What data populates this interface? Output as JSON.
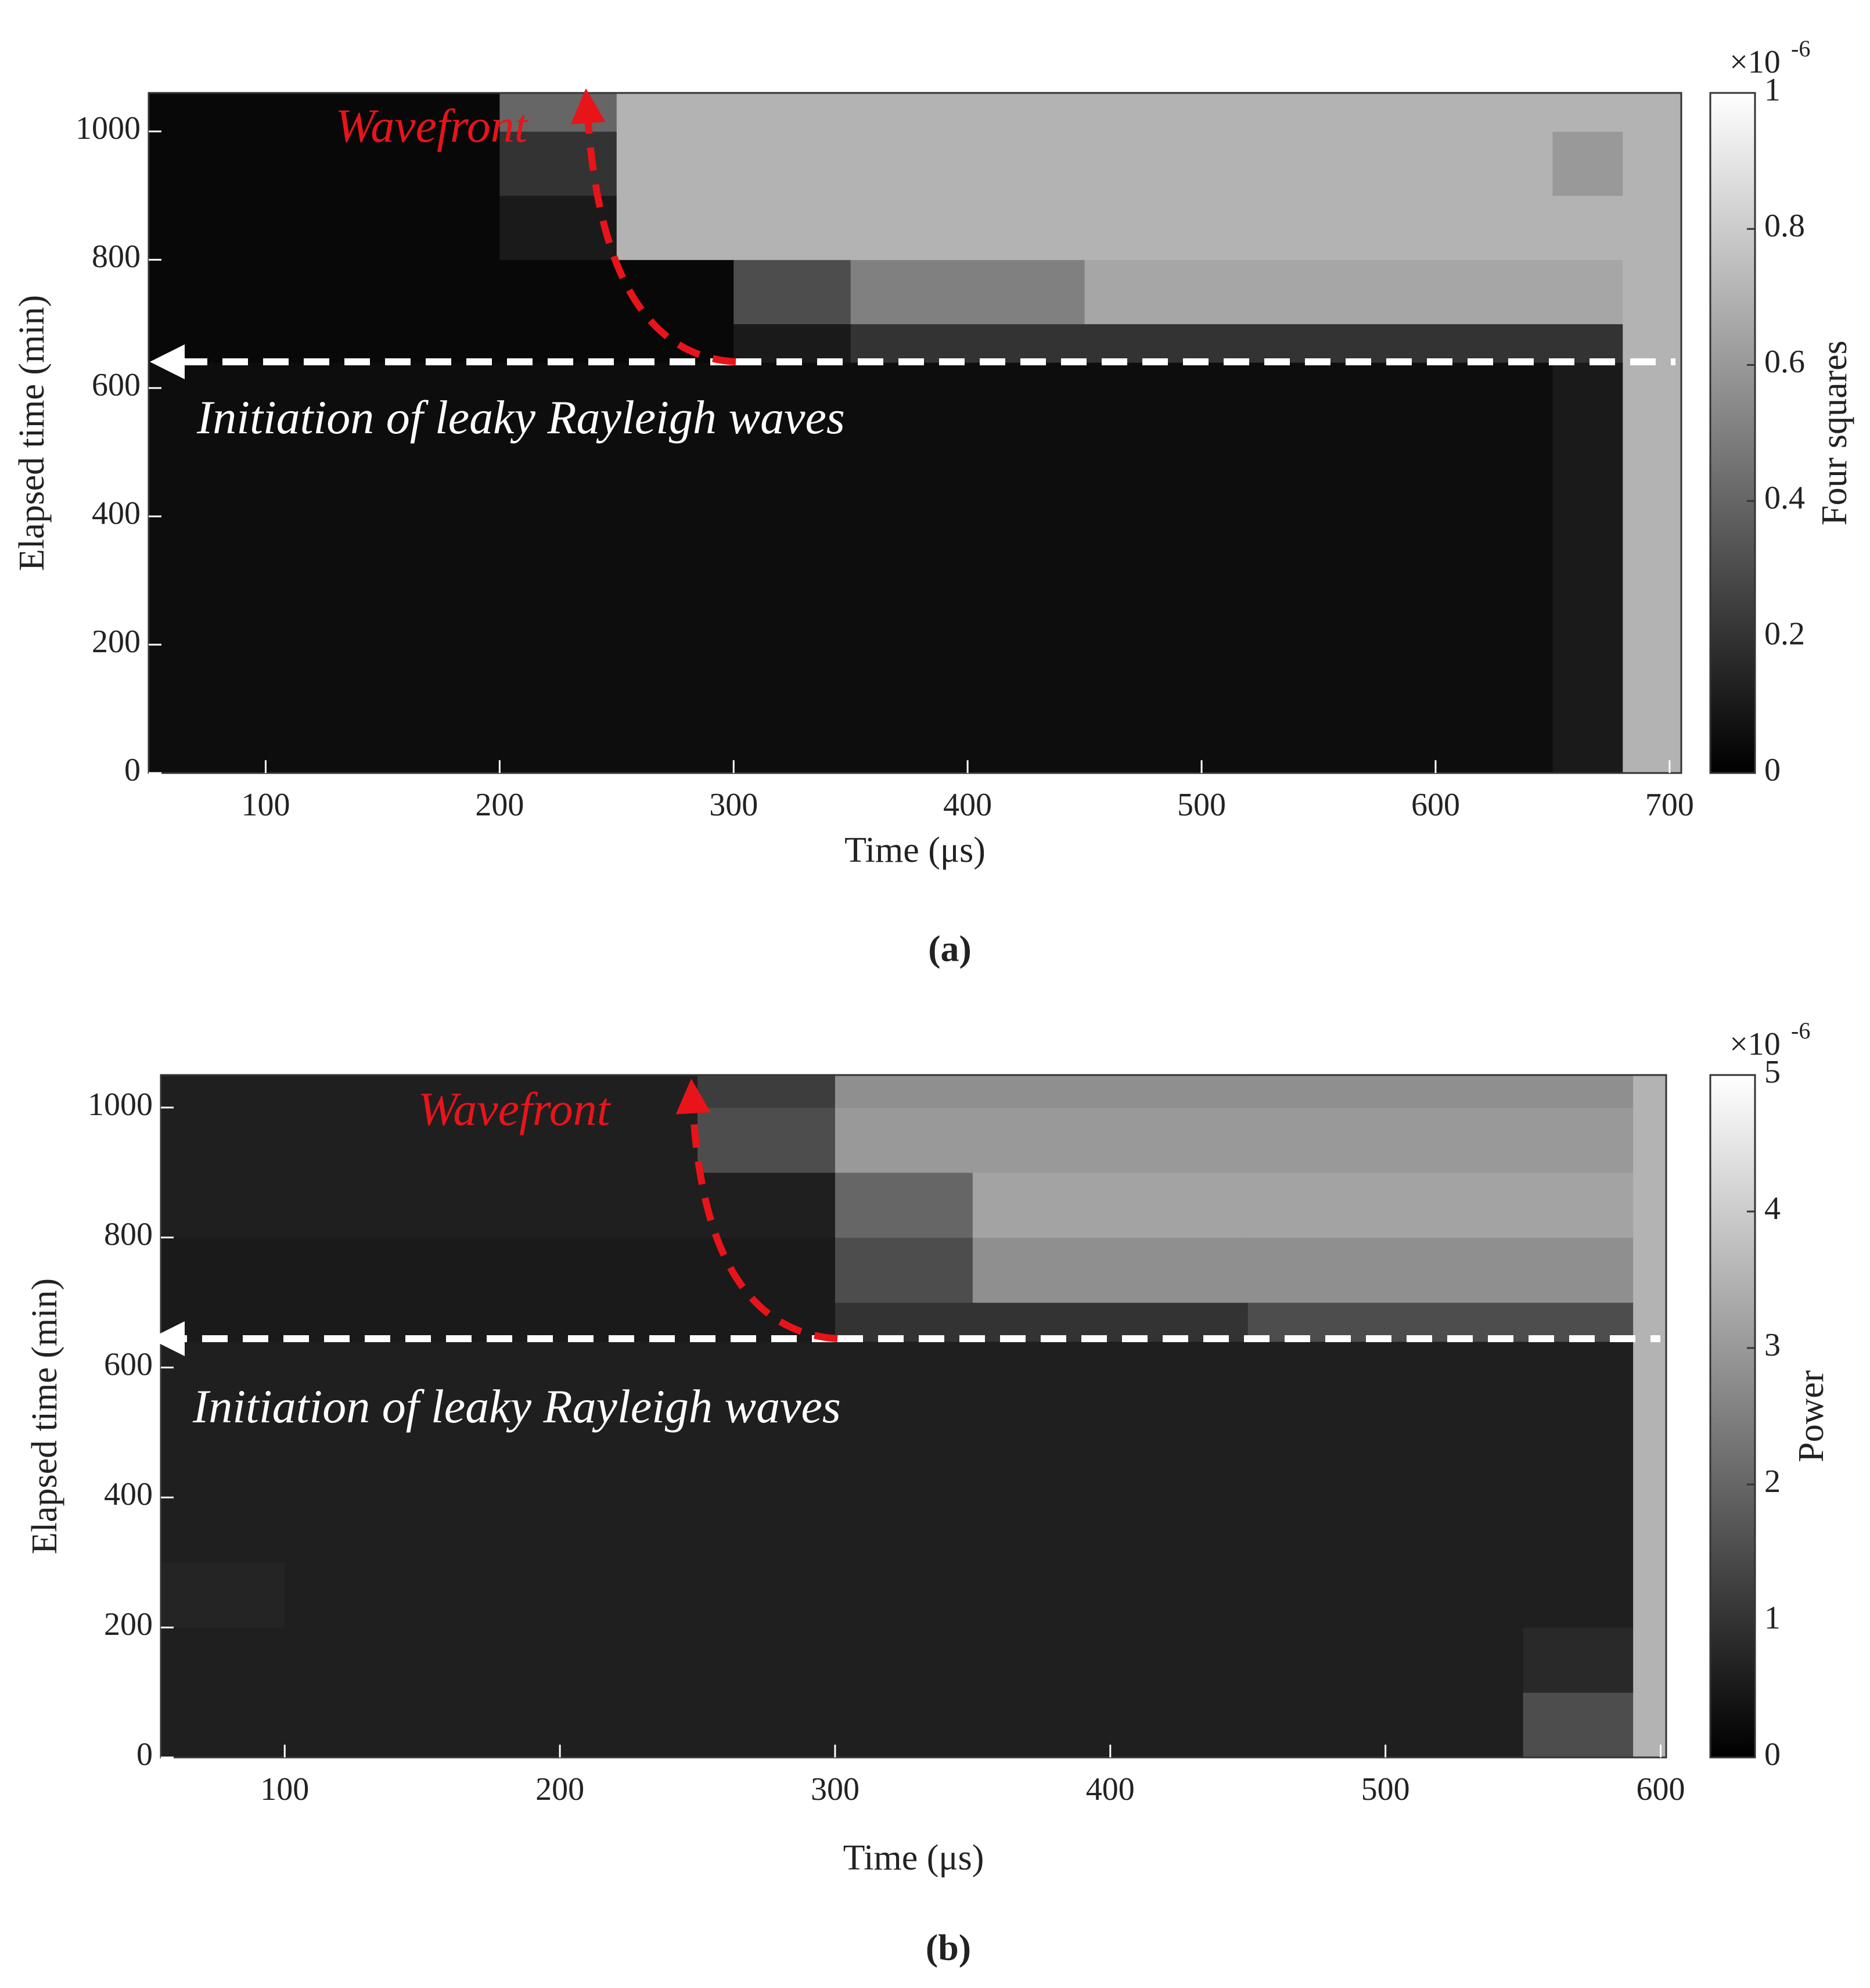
{
  "chart_data": [
    {
      "type": "heatmap",
      "panel_label": "(a)",
      "x_label": "Time (μs)",
      "y_label": "Elapsed time (min)",
      "colorbar_label": "Four squares",
      "colorbar_multiplier": "×10",
      "colorbar_exponent": "-6",
      "annotations": [
        "Wavefront",
        "Initiation of leaky Rayleigh waves"
      ],
      "colormap": "gray",
      "xlim": [
        50,
        705
      ],
      "ylim": [
        0,
        1060
      ],
      "xticks": [
        100,
        200,
        300,
        400,
        500,
        600,
        700
      ],
      "yticks": [
        0,
        200,
        400,
        600,
        800,
        1000
      ],
      "clim": [
        0,
        1
      ],
      "cticks": [
        0,
        0.2,
        0.4,
        0.6,
        0.8,
        1
      ],
      "xbins": [
        50,
        100,
        150,
        200,
        250,
        300,
        350,
        400,
        450,
        500,
        550,
        600,
        650,
        680,
        705
      ],
      "ybins": [
        0,
        100,
        200,
        300,
        400,
        500,
        600,
        640,
        700,
        800,
        900,
        1000,
        1060
      ],
      "z": [
        [
          0.05,
          0.05,
          0.05,
          0.05,
          0.05,
          0.05,
          0.05,
          0.05,
          0.05,
          0.05,
          0.05,
          0.05,
          0.1,
          0.7
        ],
        [
          0.05,
          0.05,
          0.05,
          0.05,
          0.05,
          0.05,
          0.05,
          0.05,
          0.05,
          0.05,
          0.05,
          0.05,
          0.1,
          0.7
        ],
        [
          0.05,
          0.05,
          0.05,
          0.05,
          0.05,
          0.05,
          0.05,
          0.05,
          0.05,
          0.05,
          0.05,
          0.05,
          0.1,
          0.7
        ],
        [
          0.05,
          0.05,
          0.05,
          0.05,
          0.05,
          0.05,
          0.05,
          0.05,
          0.05,
          0.05,
          0.05,
          0.05,
          0.1,
          0.7
        ],
        [
          0.05,
          0.05,
          0.05,
          0.05,
          0.05,
          0.05,
          0.05,
          0.05,
          0.05,
          0.05,
          0.05,
          0.05,
          0.1,
          0.7
        ],
        [
          0.05,
          0.05,
          0.05,
          0.05,
          0.05,
          0.05,
          0.05,
          0.05,
          0.05,
          0.05,
          0.05,
          0.05,
          0.1,
          0.7
        ],
        [
          0.05,
          0.05,
          0.05,
          0.05,
          0.05,
          0.05,
          0.05,
          0.05,
          0.05,
          0.05,
          0.05,
          0.05,
          0.1,
          0.7
        ],
        [
          0.03,
          0.03,
          0.03,
          0.03,
          0.03,
          0.1,
          0.2,
          0.2,
          0.2,
          0.2,
          0.2,
          0.2,
          0.2,
          0.7
        ],
        [
          0.03,
          0.03,
          0.03,
          0.03,
          0.03,
          0.3,
          0.5,
          0.5,
          0.65,
          0.65,
          0.65,
          0.65,
          0.65,
          0.7
        ],
        [
          0.03,
          0.03,
          0.03,
          0.1,
          0.7,
          0.7,
          0.7,
          0.7,
          0.7,
          0.7,
          0.7,
          0.7,
          0.7,
          0.7
        ],
        [
          0.03,
          0.03,
          0.03,
          0.2,
          0.7,
          0.7,
          0.7,
          0.7,
          0.7,
          0.7,
          0.7,
          0.7,
          0.6,
          0.7
        ],
        [
          0.03,
          0.03,
          0.03,
          0.4,
          0.7,
          0.7,
          0.7,
          0.7,
          0.7,
          0.7,
          0.7,
          0.7,
          0.7,
          0.7
        ]
      ]
    },
    {
      "type": "heatmap",
      "panel_label": "(b)",
      "x_label": "Time (μs)",
      "y_label": "Elapsed time (min)",
      "colorbar_label": "Power",
      "colorbar_multiplier": "×10",
      "colorbar_exponent": "-6",
      "annotations": [
        "Wavefront",
        "Initiation of leaky Rayleigh waves"
      ],
      "colormap": "gray",
      "xlim": [
        55,
        602
      ],
      "ylim": [
        0,
        1050
      ],
      "xticks": [
        100,
        200,
        300,
        400,
        500,
        600
      ],
      "yticks": [
        0,
        200,
        400,
        600,
        800,
        1000
      ],
      "clim": [
        0,
        5
      ],
      "cticks": [
        0,
        1,
        2,
        3,
        4,
        5
      ],
      "xbins": [
        55,
        100,
        150,
        200,
        250,
        300,
        350,
        400,
        450,
        500,
        550,
        590,
        602
      ],
      "ybins": [
        0,
        100,
        200,
        300,
        400,
        500,
        600,
        640,
        700,
        800,
        900,
        1000,
        1050
      ],
      "z": [
        [
          0.6,
          0.6,
          0.6,
          0.6,
          0.6,
          0.6,
          0.6,
          0.6,
          0.6,
          0.6,
          1.5,
          3.5
        ],
        [
          0.6,
          0.6,
          0.6,
          0.6,
          0.6,
          0.6,
          0.6,
          0.6,
          0.6,
          0.6,
          0.8,
          3.5
        ],
        [
          0.7,
          0.6,
          0.6,
          0.6,
          0.6,
          0.6,
          0.6,
          0.6,
          0.6,
          0.6,
          0.6,
          3.5
        ],
        [
          0.6,
          0.6,
          0.6,
          0.6,
          0.6,
          0.6,
          0.6,
          0.6,
          0.6,
          0.6,
          0.6,
          3.5
        ],
        [
          0.6,
          0.6,
          0.6,
          0.6,
          0.6,
          0.6,
          0.6,
          0.6,
          0.6,
          0.6,
          0.6,
          3.5
        ],
        [
          0.6,
          0.6,
          0.6,
          0.6,
          0.6,
          0.6,
          0.6,
          0.6,
          0.6,
          0.6,
          0.6,
          3.5
        ],
        [
          0.6,
          0.6,
          0.6,
          0.6,
          0.6,
          0.6,
          0.6,
          0.6,
          0.6,
          0.6,
          0.6,
          3.5
        ],
        [
          0.5,
          0.5,
          0.5,
          0.5,
          0.5,
          1.0,
          1.0,
          1.0,
          1.5,
          1.5,
          1.5,
          3.5
        ],
        [
          0.5,
          0.5,
          0.5,
          0.5,
          0.5,
          1.5,
          2.8,
          2.8,
          2.8,
          2.8,
          2.8,
          3.5
        ],
        [
          0.6,
          0.6,
          0.6,
          0.6,
          0.6,
          2.0,
          3.2,
          3.2,
          3.2,
          3.2,
          3.2,
          3.5
        ],
        [
          0.6,
          0.6,
          0.6,
          0.6,
          1.5,
          3.0,
          3.0,
          3.0,
          3.0,
          3.0,
          3.0,
          3.5
        ],
        [
          0.6,
          0.6,
          0.6,
          0.6,
          1.2,
          2.8,
          2.8,
          2.8,
          2.8,
          2.8,
          2.8,
          3.5
        ]
      ]
    }
  ]
}
